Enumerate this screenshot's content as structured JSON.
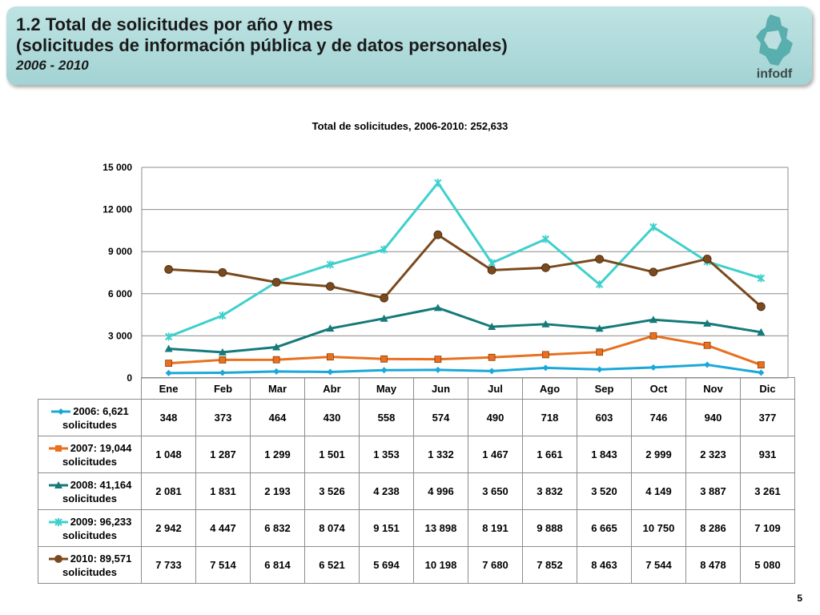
{
  "header": {
    "title_line1": "1.2 Total de solicitudes por año y mes",
    "title_line2": "(solicitudes de información pública y de datos personales)",
    "years": "2006 - 2010",
    "logo_text": "infodf"
  },
  "page_number": "5",
  "chart_data": {
    "type": "line",
    "title": "Total de solicitudes, 2006-2010: 252,633",
    "categories": [
      "Ene",
      "Feb",
      "Mar",
      "Abr",
      "May",
      "Jun",
      "Jul",
      "Ago",
      "Sep",
      "Oct",
      "Nov",
      "Dic"
    ],
    "ylim": [
      0,
      15000
    ],
    "yticks": [
      0,
      3000,
      6000,
      9000,
      12000,
      15000
    ],
    "ytick_labels": [
      "0",
      "3 000",
      "6 000",
      "9 000",
      "12 000",
      "15 000"
    ],
    "grid": true,
    "legend_placement": "data-table",
    "series": [
      {
        "name": "2006: 6,621 solicitudes",
        "name_line1": "2006: 6,621",
        "name_line2": "solicitudes",
        "color": "#1aa8d8",
        "marker": "diamond",
        "values": [
          348,
          373,
          464,
          430,
          558,
          574,
          490,
          718,
          603,
          746,
          940,
          377
        ],
        "labels": [
          "348",
          "373",
          "464",
          "430",
          "558",
          "574",
          "490",
          "718",
          "603",
          "746",
          "940",
          "377"
        ]
      },
      {
        "name": "2007: 19,044 solicitudes",
        "name_line1": "2007: 19,044",
        "name_line2": "solicitudes",
        "color": "#e8701e",
        "marker": "square",
        "values": [
          1048,
          1287,
          1299,
          1501,
          1353,
          1332,
          1467,
          1661,
          1843,
          2999,
          2323,
          931
        ],
        "labels": [
          "1 048",
          "1 287",
          "1 299",
          "1 501",
          "1 353",
          "1 332",
          "1 467",
          "1 661",
          "1 843",
          "2 999",
          "2 323",
          "931"
        ]
      },
      {
        "name": "2008: 41,164 solicitudes",
        "name_line1": "2008: 41,164",
        "name_line2": "solicitudes",
        "color": "#157a7a",
        "marker": "triangle",
        "values": [
          2081,
          1831,
          2193,
          3526,
          4238,
          4996,
          3650,
          3832,
          3520,
          4149,
          3887,
          3261
        ],
        "labels": [
          "2 081",
          "1 831",
          "2 193",
          "3 526",
          "4 238",
          "4 996",
          "3 650",
          "3 832",
          "3 520",
          "4 149",
          "3 887",
          "3 261"
        ]
      },
      {
        "name": "2009: 96,233 solicitudes",
        "name_line1": "2009: 96,233",
        "name_line2": "solicitudes",
        "color": "#3fd0cc",
        "marker": "star",
        "values": [
          2942,
          4447,
          6832,
          8074,
          9151,
          13898,
          8191,
          9888,
          6665,
          10750,
          8286,
          7109
        ],
        "labels": [
          "2 942",
          "4 447",
          "6 832",
          "8 074",
          "9 151",
          "13 898",
          "8 191",
          "9 888",
          "6 665",
          "10 750",
          "8 286",
          "7 109"
        ]
      },
      {
        "name": "2010: 89,571 solicitudes",
        "name_line1": "2010: 89,571",
        "name_line2": "solicitudes",
        "color": "#7a4a1e",
        "marker": "circle",
        "values": [
          7733,
          7514,
          6814,
          6521,
          5694,
          10198,
          7680,
          7852,
          8463,
          7544,
          8478,
          5080
        ],
        "labels": [
          "7 733",
          "7 514",
          "6 814",
          "6 521",
          "5 694",
          "10 198",
          "7 680",
          "7 852",
          "8 463",
          "7 544",
          "8 478",
          "5 080"
        ]
      }
    ]
  }
}
